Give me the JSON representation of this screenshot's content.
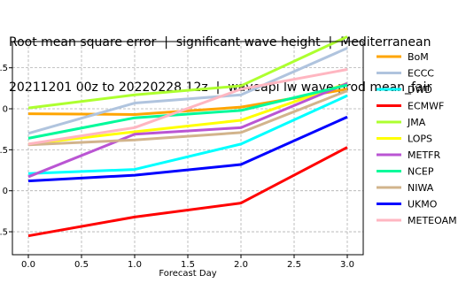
{
  "chart_data": {
    "type": "line",
    "title": "Root mean square error  |  significant wave height  |  Mediterranean",
    "subtitle": "20211201 00z to 20220228 12z  |  waveapi lw wave prod mean_fair",
    "xlabel": "Forecast Day",
    "ylabel": "",
    "x": [
      0.0,
      1.0,
      2.0,
      3.0
    ],
    "x_ticks": [
      "0.0",
      "0.5",
      "1.0",
      "1.5",
      "2.0",
      "2.5",
      "3.0"
    ],
    "y_ticks": [
      ".5",
      "0",
      ".5",
      "0",
      ".5"
    ],
    "xlim": [
      -0.15,
      3.15
    ],
    "ylim": [
      0.147,
      0.407
    ],
    "grid": true,
    "legend_position": "right",
    "series": [
      {
        "name": "BoM",
        "color": "#ffa500",
        "values": [
          0.319,
          0.318,
          0.327,
          0.349
        ]
      },
      {
        "name": "ECCC",
        "color": "#b0c4de",
        "values": [
          0.295,
          0.332,
          0.342,
          0.399
        ]
      },
      {
        "name": "DWD",
        "color": "#00ffff",
        "values": [
          0.246,
          0.251,
          0.282,
          0.341
        ]
      },
      {
        "name": "ECMWF",
        "color": "#ff0000",
        "values": [
          0.17,
          0.193,
          0.21,
          0.278
        ]
      },
      {
        "name": "JMA",
        "color": "#adff2f",
        "values": [
          0.326,
          0.342,
          0.353,
          0.413
        ]
      },
      {
        "name": "LOPS",
        "color": "#ffff00",
        "values": [
          0.282,
          0.297,
          0.311,
          0.356
        ]
      },
      {
        "name": "METFR",
        "color": "#ba55d3",
        "values": [
          0.242,
          0.294,
          0.302,
          0.356
        ]
      },
      {
        "name": "NCEP",
        "color": "#00fa9a",
        "values": [
          0.289,
          0.314,
          0.323,
          0.354
        ]
      },
      {
        "name": "NIWA",
        "color": "#d2b48c",
        "values": [
          0.281,
          0.287,
          0.296,
          0.347
        ]
      },
      {
        "name": "UKMO",
        "color": "#0000ff",
        "values": [
          0.237,
          0.244,
          0.257,
          0.315
        ]
      },
      {
        "name": "METEOAM",
        "color": "#ffb6c1",
        "values": [
          0.282,
          0.302,
          0.349,
          0.373
        ]
      }
    ]
  }
}
